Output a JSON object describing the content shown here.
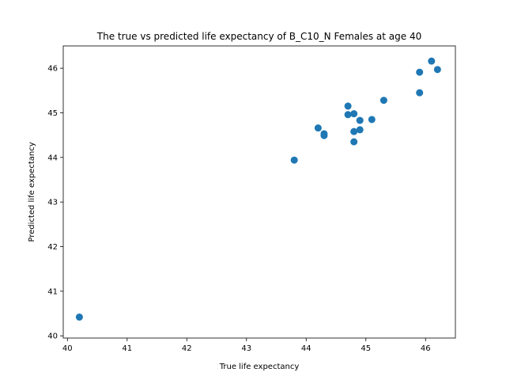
{
  "chart_data": {
    "type": "scatter",
    "title": "The true vs predicted life expectancy of B_C10_N Females at age 40",
    "xlabel": "True life expectancy",
    "ylabel": "Predicted life expectancy",
    "xlim": [
      39.93,
      46.5
    ],
    "ylim": [
      39.95,
      46.5
    ],
    "x_ticks": [
      "40",
      "41",
      "42",
      "43",
      "44",
      "45",
      "46"
    ],
    "y_ticks": [
      "40",
      "41",
      "42",
      "43",
      "44",
      "45",
      "46"
    ],
    "grid": false,
    "marker_color": "#1f77b4",
    "points": [
      {
        "x": 40.2,
        "y": 40.42
      },
      {
        "x": 43.8,
        "y": 43.94
      },
      {
        "x": 44.2,
        "y": 44.66
      },
      {
        "x": 44.3,
        "y": 44.53
      },
      {
        "x": 44.3,
        "y": 44.49
      },
      {
        "x": 44.7,
        "y": 45.15
      },
      {
        "x": 44.7,
        "y": 44.96
      },
      {
        "x": 44.8,
        "y": 44.98
      },
      {
        "x": 44.8,
        "y": 44.58
      },
      {
        "x": 44.8,
        "y": 44.35
      },
      {
        "x": 44.9,
        "y": 44.83
      },
      {
        "x": 44.9,
        "y": 44.62
      },
      {
        "x": 45.1,
        "y": 44.85
      },
      {
        "x": 45.3,
        "y": 45.28
      },
      {
        "x": 45.9,
        "y": 45.91
      },
      {
        "x": 45.9,
        "y": 45.45
      },
      {
        "x": 46.1,
        "y": 46.16
      },
      {
        "x": 46.2,
        "y": 45.97
      }
    ]
  }
}
